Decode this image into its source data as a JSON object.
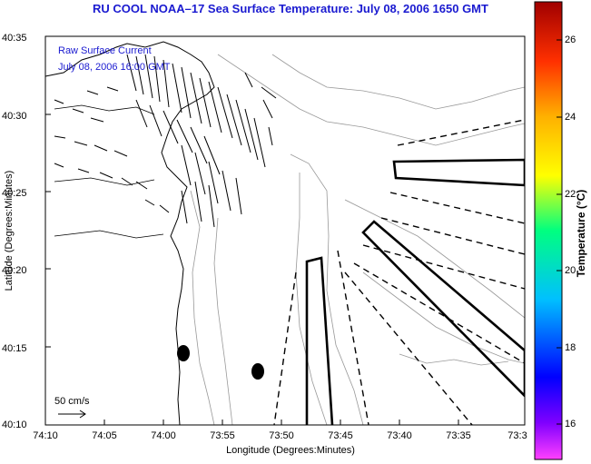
{
  "title": "RU COOL  NOAA–17  Sea Surface Temperature:  July 08, 2006 1650 GMT",
  "legend": {
    "line1": "Raw Surface Current",
    "line2": "July 08, 2006 16:00 GMT"
  },
  "axes": {
    "xlabel": "Longitude (Degrees:Minutes)",
    "ylabel": "Latitude (Degrees:Minutes)",
    "xticks": [
      "74:10",
      "74:05",
      "74:00",
      "73:55",
      "73:50",
      "73:45",
      "73:40",
      "73:35",
      "73:3"
    ],
    "yticks": [
      "40:35",
      "40:30",
      "40:25",
      "40:20",
      "40:15",
      "40:10"
    ]
  },
  "colorbar": {
    "label": "Temperature (°C)",
    "ticks": [
      "26",
      "24",
      "22",
      "20",
      "18",
      "16"
    ],
    "range": [
      15,
      27
    ]
  },
  "scale_bar": "50 cm/s",
  "markers": [
    "station-marker-1",
    "station-marker-2"
  ],
  "colors": {
    "title": "#1a1ad0",
    "legend": "#1a1ad0"
  }
}
